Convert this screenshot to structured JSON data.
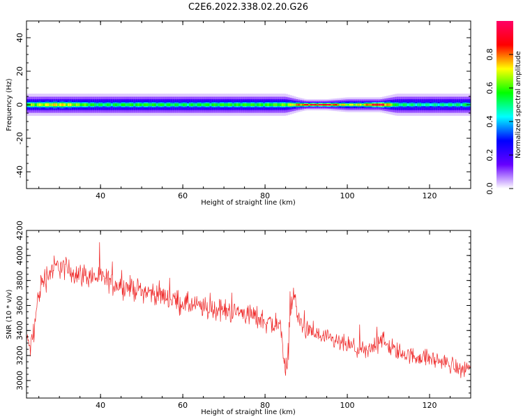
{
  "title": "C2E6.2022.338.02.20.G26",
  "chart_data": [
    {
      "type": "heatmap",
      "xlabel": "Height of straight line (km)",
      "ylabel": "Frequency (Hz)",
      "xlim": [
        22,
        130
      ],
      "ylim": [
        -50,
        50
      ],
      "x_ticks": [
        40,
        60,
        80,
        100,
        120
      ],
      "y_ticks": [
        -40,
        -20,
        0,
        20,
        40
      ],
      "grid": false,
      "band_description": "Narrow band of spectral energy centred near 0 Hz across all heights",
      "band": {
        "x": [
          22,
          30,
          40,
          50,
          60,
          70,
          80,
          85,
          88,
          90,
          95,
          100,
          104,
          108,
          112,
          120,
          130
        ],
        "amplitude": [
          0.6,
          0.7,
          0.5,
          0.55,
          0.5,
          0.55,
          0.55,
          0.6,
          0.75,
          0.85,
          0.9,
          0.65,
          0.7,
          0.95,
          0.5,
          0.45,
          0.5
        ],
        "halfwidth_hz": [
          3,
          3,
          3,
          3,
          3,
          3,
          3,
          3,
          2,
          1.5,
          1.5,
          2,
          2,
          2,
          3,
          3,
          3
        ]
      },
      "colorbar": {
        "label": "Normalized spectral amplitude",
        "range": [
          0.0,
          1.0
        ],
        "ticks": [
          "0.0",
          "0.2",
          "0.4",
          "0.6",
          "0.8"
        ],
        "colormap": [
          "#ffffff",
          "#6600ff",
          "#0000ff",
          "#00ffff",
          "#00ff00",
          "#ffff00",
          "#ff0000",
          "#ff0066"
        ]
      }
    },
    {
      "type": "line",
      "xlabel": "Height of straight line (km)",
      "ylabel": "SNR (10 * v/v)",
      "xlim": [
        22,
        130
      ],
      "ylim": [
        2860,
        4200
      ],
      "x_ticks": [
        40,
        60,
        80,
        100,
        120
      ],
      "y_ticks": [
        3000,
        3200,
        3400,
        3600,
        3800,
        4000,
        4200
      ],
      "grid": false,
      "color": "#ee2222",
      "series": [
        {
          "x": [
            22,
            23,
            24,
            25,
            26,
            28,
            30,
            32,
            35,
            40,
            45,
            50,
            55,
            60,
            65,
            70,
            75,
            80,
            84,
            85,
            85.5,
            86,
            87,
            88,
            90,
            95,
            100,
            105,
            108,
            110,
            115,
            120,
            125,
            128,
            130
          ],
          "values": [
            3350,
            3250,
            3450,
            3700,
            3800,
            3880,
            3920,
            3880,
            3850,
            3820,
            3760,
            3720,
            3680,
            3620,
            3580,
            3560,
            3540,
            3480,
            3420,
            3050,
            3100,
            3550,
            3700,
            3500,
            3400,
            3330,
            3280,
            3220,
            3350,
            3260,
            3200,
            3180,
            3130,
            3080,
            3130
          ],
          "noise": [
            60,
            140,
            160,
            170,
            170,
            160,
            150,
            150,
            140,
            140,
            130,
            130,
            130,
            130,
            130,
            130,
            130,
            140,
            140,
            180,
            180,
            140,
            130,
            120,
            110,
            110,
            110,
            110,
            120,
            110,
            100,
            100,
            100,
            110,
            100
          ]
        }
      ]
    }
  ]
}
